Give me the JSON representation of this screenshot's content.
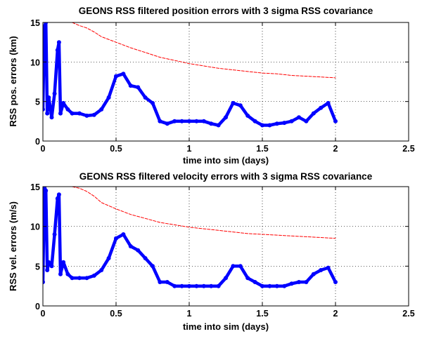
{
  "chart_data": [
    {
      "type": "line",
      "title": "GEONS RSS filtered position errors with 3 sigma RSS covariance",
      "xlabel": "time into sim (days)",
      "ylabel": "RSS pos. errors (km)",
      "xlim": [
        0,
        2.5
      ],
      "ylim": [
        0,
        15
      ],
      "xticks": [
        "0",
        "0.5",
        "1",
        "1.5",
        "2",
        "2.5"
      ],
      "yticks": [
        "0",
        "5",
        "10",
        "15"
      ],
      "grid": true,
      "legend": "none",
      "series": [
        {
          "style": "thick solid with dot markers",
          "color": "#0000ff",
          "x": [
            0.0,
            0.01,
            0.02,
            0.03,
            0.04,
            0.06,
            0.08,
            0.1,
            0.11,
            0.12,
            0.14,
            0.17,
            0.2,
            0.25,
            0.3,
            0.35,
            0.4,
            0.45,
            0.5,
            0.55,
            0.6,
            0.65,
            0.7,
            0.75,
            0.8,
            0.85,
            0.9,
            0.95,
            1.0,
            1.05,
            1.1,
            1.15,
            1.2,
            1.25,
            1.3,
            1.35,
            1.4,
            1.45,
            1.5,
            1.55,
            1.6,
            1.65,
            1.7,
            1.75,
            1.8,
            1.85,
            1.9,
            1.95,
            2.0
          ],
          "y": [
            4.0,
            14.5,
            15.0,
            3.5,
            5.5,
            3.0,
            6.0,
            11.5,
            12.5,
            3.5,
            4.8,
            4.0,
            3.5,
            3.5,
            3.2,
            3.3,
            4.0,
            5.5,
            8.2,
            8.5,
            7.0,
            6.8,
            5.5,
            4.8,
            2.5,
            2.2,
            2.5,
            2.5,
            2.5,
            2.5,
            2.5,
            2.2,
            2.0,
            3.0,
            4.8,
            4.5,
            3.2,
            2.5,
            2.0,
            2.0,
            2.2,
            2.3,
            2.5,
            3.0,
            2.5,
            3.5,
            4.2,
            4.8,
            2.5
          ]
        },
        {
          "style": "thin dashed",
          "color": "#ff0000",
          "x": [
            0.0,
            0.02,
            0.06,
            0.1,
            0.15,
            0.2,
            0.25,
            0.3,
            0.35,
            0.4,
            0.5,
            0.6,
            0.7,
            0.8,
            0.9,
            1.0,
            1.1,
            1.2,
            1.3,
            1.4,
            1.5,
            1.6,
            1.7,
            1.8,
            1.9,
            2.0
          ],
          "y": [
            15,
            15,
            15,
            15,
            15,
            15,
            14.6,
            14.3,
            13.8,
            13.2,
            12.5,
            11.8,
            11.2,
            10.6,
            10.2,
            9.8,
            9.5,
            9.2,
            9.0,
            8.8,
            8.6,
            8.5,
            8.3,
            8.2,
            8.1,
            8.0
          ]
        }
      ]
    },
    {
      "type": "line",
      "title": "GEONS RSS filtered velocity errors with 3 sigma RSS covariance",
      "xlabel": "time into sim (days)",
      "ylabel": "RSS vel. errors (m/s)",
      "xlim": [
        0,
        2.5
      ],
      "ylim": [
        0,
        15
      ],
      "xticks": [
        "0",
        "0.5",
        "1",
        "1.5",
        "2",
        "2.5"
      ],
      "yticks": [
        "0",
        "5",
        "10",
        "15"
      ],
      "grid": true,
      "legend": "none",
      "series": [
        {
          "style": "thick solid with dot markers",
          "color": "#0000ff",
          "x": [
            0.0,
            0.01,
            0.02,
            0.03,
            0.04,
            0.06,
            0.08,
            0.1,
            0.11,
            0.12,
            0.14,
            0.17,
            0.2,
            0.25,
            0.3,
            0.35,
            0.4,
            0.45,
            0.5,
            0.55,
            0.6,
            0.65,
            0.7,
            0.75,
            0.8,
            0.85,
            0.9,
            0.95,
            1.0,
            1.05,
            1.1,
            1.15,
            1.2,
            1.25,
            1.3,
            1.35,
            1.4,
            1.45,
            1.5,
            1.55,
            1.6,
            1.65,
            1.7,
            1.75,
            1.8,
            1.85,
            1.9,
            1.95,
            2.0
          ],
          "y": [
            3.0,
            15.0,
            14.5,
            4.5,
            5.5,
            5.0,
            9.0,
            13.5,
            14.0,
            4.0,
            5.5,
            4.0,
            3.5,
            3.5,
            3.5,
            3.8,
            4.5,
            6.0,
            8.5,
            9.0,
            7.5,
            7.0,
            6.0,
            5.0,
            3.0,
            3.0,
            2.5,
            2.5,
            2.5,
            2.5,
            2.5,
            2.5,
            2.5,
            3.5,
            5.0,
            5.0,
            3.5,
            3.0,
            2.5,
            2.5,
            2.5,
            2.5,
            2.8,
            3.0,
            3.0,
            4.0,
            4.5,
            4.8,
            3.0
          ]
        },
        {
          "style": "thin dashed",
          "color": "#ff0000",
          "x": [
            0.0,
            0.02,
            0.06,
            0.1,
            0.15,
            0.2,
            0.25,
            0.3,
            0.35,
            0.4,
            0.5,
            0.6,
            0.7,
            0.8,
            0.9,
            1.0,
            1.1,
            1.2,
            1.3,
            1.4,
            1.5,
            1.6,
            1.7,
            1.8,
            1.9,
            2.0
          ],
          "y": [
            15,
            15,
            15,
            15,
            15,
            15,
            14.8,
            14.4,
            13.8,
            13.0,
            12.2,
            11.5,
            11.0,
            10.5,
            10.2,
            9.9,
            9.7,
            9.5,
            9.3,
            9.1,
            9.0,
            8.9,
            8.8,
            8.7,
            8.6,
            8.5
          ]
        }
      ]
    }
  ]
}
